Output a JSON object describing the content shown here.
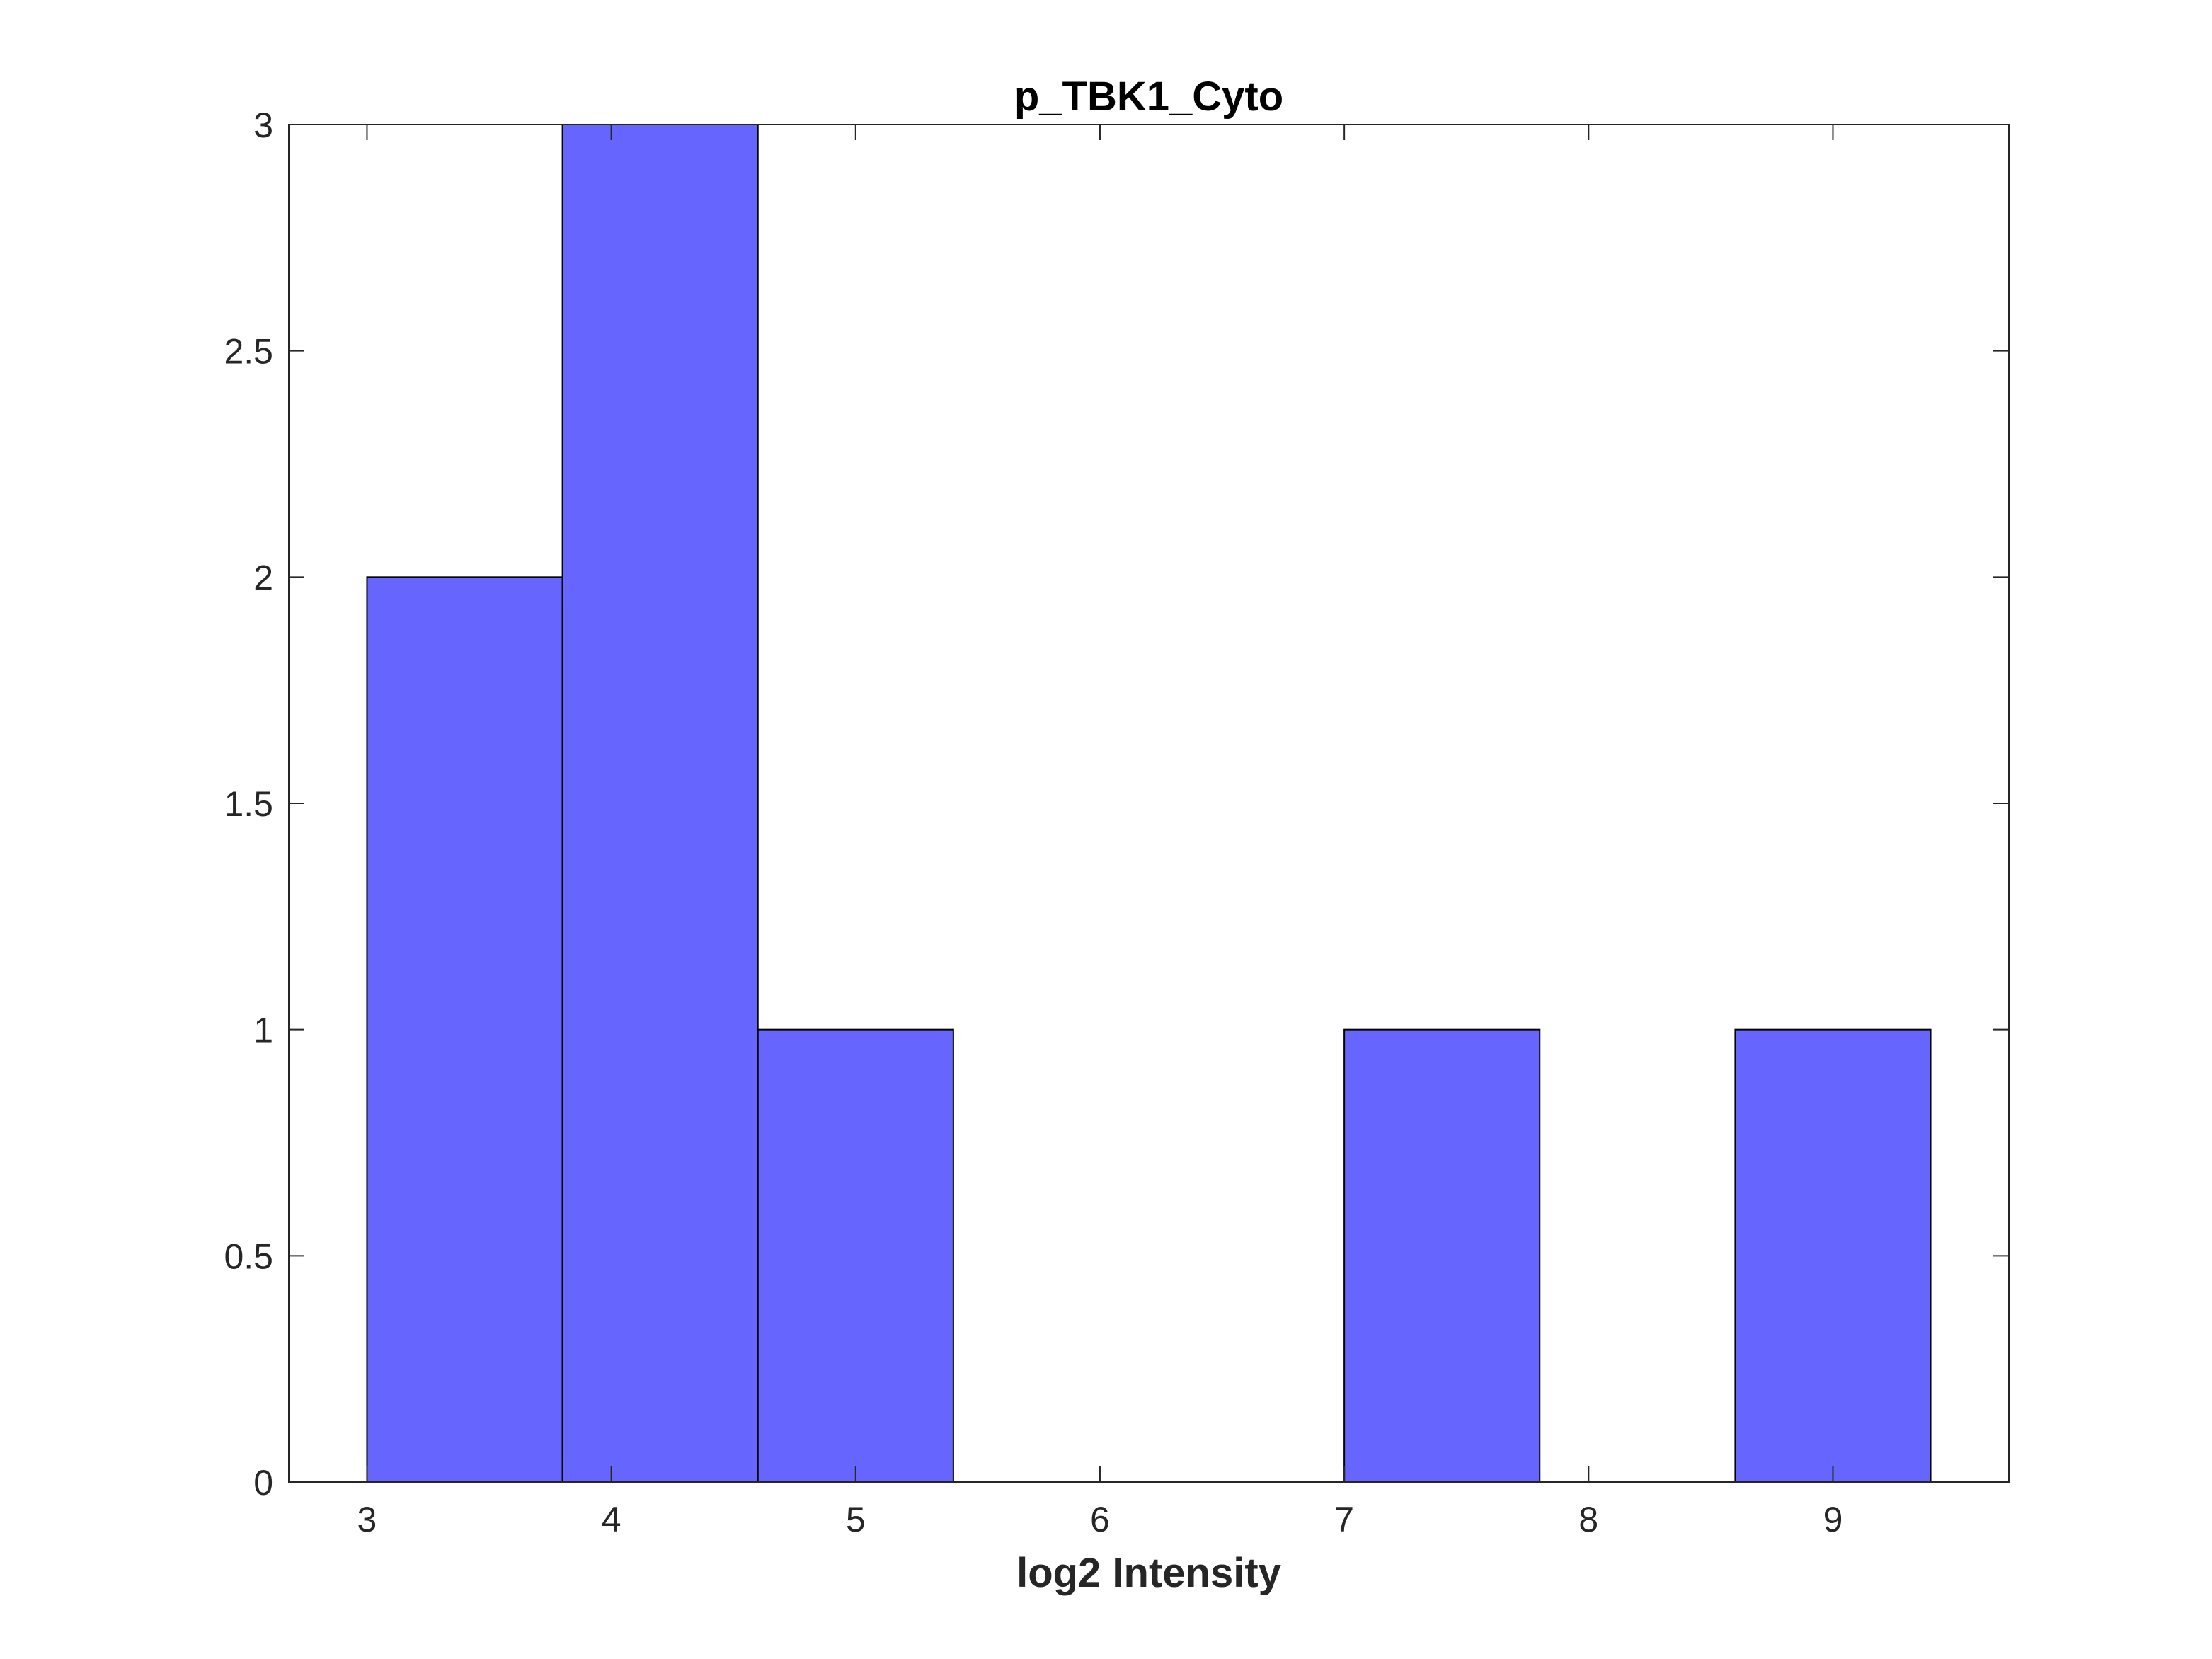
{
  "chart_data": {
    "type": "bar",
    "title": "p_TBK1_Cyto",
    "xlabel": "log2 Intensity",
    "ylabel": "",
    "xlim": [
      2.68,
      9.72
    ],
    "ylim": [
      0,
      3
    ],
    "xticks": [
      3,
      4,
      5,
      6,
      7,
      8,
      9
    ],
    "yticks": [
      0,
      0.5,
      1,
      1.5,
      2,
      2.5,
      3
    ],
    "xtick_labels": [
      "3",
      "4",
      "5",
      "6",
      "7",
      "8",
      "9"
    ],
    "ytick_labels": [
      "0",
      "0.5",
      "1",
      "1.5",
      "2",
      "2.5",
      "3"
    ],
    "bin_edges": [
      3.0,
      3.8,
      4.6,
      5.4,
      6.2,
      7.0,
      7.8,
      8.6,
      9.4
    ],
    "values": [
      2,
      3,
      1,
      0,
      0,
      1,
      0,
      1
    ],
    "grid": false,
    "bar_color": "#6666ff",
    "edge_color": "#000000"
  }
}
